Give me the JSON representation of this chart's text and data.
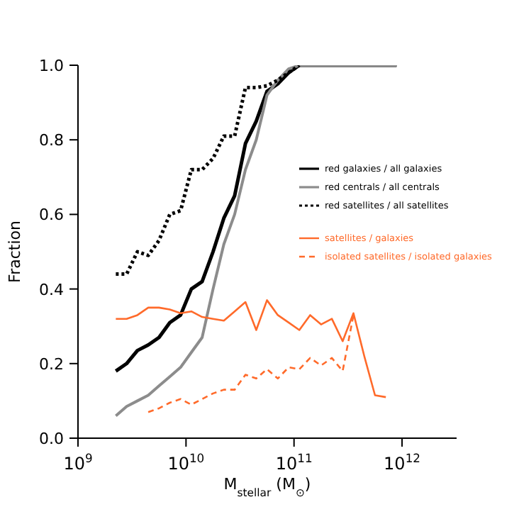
{
  "chart_data": {
    "type": "line",
    "xlabel": "M$_{stellar}$ (M$_{⊙}$)",
    "ylabel": "Fraction",
    "log": "x",
    "xlim": [
      1000000000.0,
      3200000000000.0
    ],
    "xticks": [
      {
        "value": 1000000000.0,
        "label": "10$^{9}$"
      },
      {
        "value": 10000000000.0,
        "label": "10$^{10}$"
      },
      {
        "value": 100000000000.0,
        "label": "10$^{11}$"
      },
      {
        "value": 1000000000000.0,
        "label": "10$^{12}$"
      }
    ],
    "ylim": [
      0,
      1.0
    ],
    "yticks": [
      {
        "value": 0,
        "label": "0.0"
      },
      {
        "value": 0.2,
        "label": "0.2"
      },
      {
        "value": 0.4,
        "label": "0.4"
      },
      {
        "value": 0.6,
        "label": "0.6"
      },
      {
        "value": 0.8,
        "label": "0.8"
      },
      {
        "value": 1.0,
        "label": "1.0"
      }
    ],
    "grid": false,
    "legend": "right",
    "marker": "none",
    "series": [
      {
        "name": "red galaxies / all galaxies",
        "color": "#000000",
        "line_style": "solid",
        "x": [
          2240000000.0,
          2820000000.0,
          3550000000.0,
          4470000000.0,
          5620000000.0,
          7080000000.0,
          8910000000.0,
          11200000000.0,
          14100000000.0,
          17800000000.0,
          22400000000.0,
          28200000000.0,
          35500000000.0,
          44700000000.0,
          56200000000.0,
          70800000000.0,
          89100000000.0,
          112000000000.0,
          141000000000.0,
          178000000000.0,
          224000000000.0,
          282000000000.0,
          355000000000.0,
          447000000000.0,
          562000000000.0,
          708000000000.0,
          891000000000.0
        ],
        "values": [
          0.18,
          0.2,
          0.235,
          0.25,
          0.27,
          0.31,
          0.33,
          0.4,
          0.42,
          0.5,
          0.59,
          0.65,
          0.79,
          0.85,
          0.93,
          0.95,
          0.98,
          1.0,
          1.0,
          1.0,
          1.0,
          1.0,
          1.0,
          1.0,
          1.0,
          1.0,
          1.0
        ]
      },
      {
        "name": "red centrals / all centrals",
        "color": "#8c8c8c",
        "line_style": "solid",
        "x": [
          2240000000.0,
          2820000000.0,
          3550000000.0,
          4470000000.0,
          5620000000.0,
          7080000000.0,
          8910000000.0,
          11200000000.0,
          14100000000.0,
          17800000000.0,
          22400000000.0,
          28200000000.0,
          35500000000.0,
          44700000000.0,
          56200000000.0,
          70800000000.0,
          89100000000.0,
          112000000000.0,
          141000000000.0,
          178000000000.0,
          224000000000.0,
          282000000000.0,
          355000000000.0,
          447000000000.0,
          562000000000.0,
          708000000000.0,
          891000000000.0
        ],
        "values": [
          0.06,
          0.085,
          0.1,
          0.115,
          0.14,
          0.165,
          0.19,
          0.23,
          0.27,
          0.4,
          0.52,
          0.6,
          0.72,
          0.8,
          0.92,
          0.96,
          0.99,
          1.0,
          1.0,
          1.0,
          1.0,
          1.0,
          1.0,
          1.0,
          1.0,
          1.0,
          1.0
        ]
      },
      {
        "name": "red satellites / all satellites",
        "color": "#000000",
        "line_style": "dotted",
        "x": [
          2240000000.0,
          2820000000.0,
          3550000000.0,
          4470000000.0,
          5620000000.0,
          7080000000.0,
          8910000000.0,
          11200000000.0,
          14100000000.0,
          17800000000.0,
          22400000000.0,
          28200000000.0,
          35500000000.0,
          44700000000.0,
          56200000000.0,
          70800000000.0,
          89100000000.0,
          112000000000.0
        ],
        "values": [
          0.44,
          0.44,
          0.5,
          0.49,
          0.53,
          0.6,
          0.61,
          0.72,
          0.72,
          0.75,
          0.81,
          0.81,
          0.94,
          0.94,
          0.945,
          0.96,
          0.98,
          1.0
        ]
      },
      {
        "name": "satellites / galaxies",
        "color": "#ff6a2a",
        "line_style": "solid",
        "x": [
          2240000000.0,
          2820000000.0,
          3550000000.0,
          4470000000.0,
          5620000000.0,
          7080000000.0,
          8910000000.0,
          11200000000.0,
          14100000000.0,
          17800000000.0,
          22400000000.0,
          28200000000.0,
          35500000000.0,
          44700000000.0,
          56200000000.0,
          70800000000.0,
          89100000000.0,
          112000000000.0,
          141000000000.0,
          178000000000.0,
          224000000000.0,
          282000000000.0,
          355000000000.0,
          447000000000.0,
          562000000000.0,
          708000000000.0
        ],
        "values": [
          0.32,
          0.32,
          0.33,
          0.35,
          0.35,
          0.345,
          0.335,
          0.34,
          0.325,
          0.32,
          0.315,
          0.34,
          0.365,
          0.29,
          0.37,
          0.33,
          0.31,
          0.29,
          0.33,
          0.305,
          0.32,
          0.26,
          0.335,
          0.22,
          0.115,
          0.11
        ]
      },
      {
        "name": "isolated satellites / isolated galaxies",
        "color": "#ff6a2a",
        "line_style": "dashed",
        "x": [
          4470000000.0,
          5620000000.0,
          7080000000.0,
          8910000000.0,
          11200000000.0,
          14100000000.0,
          17800000000.0,
          22400000000.0,
          28200000000.0,
          35500000000.0,
          44700000000.0,
          56200000000.0,
          70800000000.0,
          89100000000.0,
          112000000000.0,
          141000000000.0,
          178000000000.0,
          224000000000.0,
          282000000000.0,
          355000000000.0
        ],
        "values": [
          0.07,
          0.08,
          0.095,
          0.105,
          0.09,
          0.105,
          0.12,
          0.13,
          0.13,
          0.17,
          0.16,
          0.185,
          0.16,
          0.19,
          0.185,
          0.215,
          0.195,
          0.215,
          0.18,
          0.33
        ]
      }
    ]
  }
}
